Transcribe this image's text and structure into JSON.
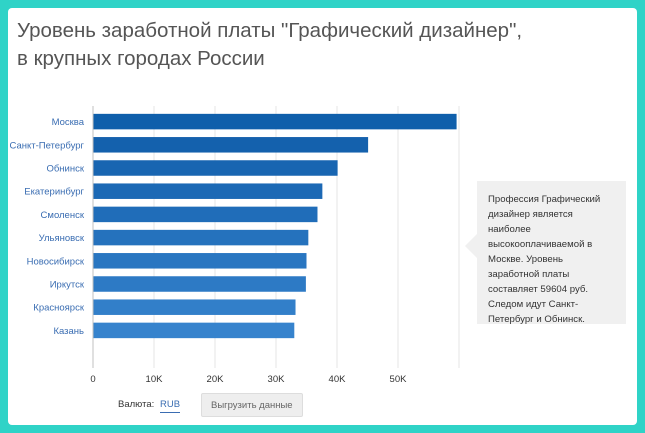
{
  "title": "Уровень заработной платы \"Графический дизайнер\", в крупных городах России",
  "callout": {
    "text": "Профессия Графический дизайнер является наиболее высокооплачиваемой в Москве. Уровень заработной платы составляет 59604 руб. Следом идут Санкт-Петербург и Обнинск."
  },
  "controls": {
    "currency_label": "Валюта:",
    "currency_value": "RUB",
    "export_label": "Выгрузить данные"
  },
  "colors": {
    "accent": "#3a6db2",
    "background": "#2fd3c7"
  },
  "chart_data": {
    "type": "bar",
    "orientation": "horizontal",
    "categories": [
      "Москва",
      "Санкт-Петербург",
      "Обнинск",
      "Екатеринбург",
      "Смоленск",
      "Ульяновск",
      "Новосибирск",
      "Иркутск",
      "Красноярск",
      "Казань"
    ],
    "values": [
      59604,
      45100,
      40100,
      37600,
      36800,
      35300,
      35000,
      34900,
      33200,
      33000
    ],
    "colors": [
      "#0f5fab",
      "#1461ad",
      "#1865b1",
      "#1c69b5",
      "#206db9",
      "#2572bd",
      "#2976c1",
      "#2d7ac5",
      "#327fc9",
      "#3683cd"
    ],
    "xlim": [
      0,
      60000
    ],
    "ticks": [
      0,
      10000,
      20000,
      30000,
      40000,
      50000
    ],
    "tick_labels": [
      "0",
      "10K",
      "20K",
      "30K",
      "40K",
      "50K"
    ],
    "grid": true,
    "legend": "none"
  }
}
